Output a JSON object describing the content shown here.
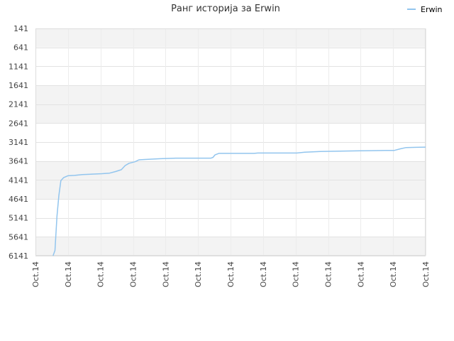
{
  "chart_data": {
    "type": "line",
    "title": "Ранг историја за Erwin",
    "xlabel": "",
    "ylabel": "",
    "y_inverted": true,
    "ylim": [
      141,
      6141
    ],
    "yticks": [
      141,
      641,
      1141,
      1641,
      2141,
      2641,
      3141,
      3641,
      4141,
      4641,
      5141,
      5641,
      6141
    ],
    "xticks": [
      "Oct.14",
      "Oct.14",
      "Oct.14",
      "Oct.14",
      "Oct.14",
      "Oct.14",
      "Oct.14",
      "Oct.14",
      "Oct.14",
      "Oct.14",
      "Oct.14",
      "Oct.14",
      "Oct.14"
    ],
    "grid": true,
    "legend": {
      "position": "top-right",
      "entries": [
        "Erwin"
      ]
    },
    "series": [
      {
        "name": "Erwin",
        "color": "#92c5ee",
        "points": [
          [
            0.045,
            6141
          ],
          [
            0.05,
            6000
          ],
          [
            0.055,
            5100
          ],
          [
            0.06,
            4550
          ],
          [
            0.065,
            4160
          ],
          [
            0.072,
            4080
          ],
          [
            0.083,
            4030
          ],
          [
            0.1,
            4020
          ],
          [
            0.12,
            4000
          ],
          [
            0.15,
            3985
          ],
          [
            0.17,
            3975
          ],
          [
            0.19,
            3960
          ],
          [
            0.205,
            3920
          ],
          [
            0.22,
            3870
          ],
          [
            0.23,
            3760
          ],
          [
            0.24,
            3700
          ],
          [
            0.255,
            3660
          ],
          [
            0.265,
            3610
          ],
          [
            0.28,
            3600
          ],
          [
            0.32,
            3580
          ],
          [
            0.36,
            3565
          ],
          [
            0.45,
            3565
          ],
          [
            0.455,
            3545
          ],
          [
            0.46,
            3480
          ],
          [
            0.47,
            3440
          ],
          [
            0.5,
            3440
          ],
          [
            0.56,
            3440
          ],
          [
            0.57,
            3430
          ],
          [
            0.6,
            3430
          ],
          [
            0.67,
            3430
          ],
          [
            0.69,
            3410
          ],
          [
            0.73,
            3390
          ],
          [
            0.78,
            3380
          ],
          [
            0.84,
            3370
          ],
          [
            0.9,
            3360
          ],
          [
            0.92,
            3360
          ],
          [
            0.935,
            3320
          ],
          [
            0.95,
            3285
          ],
          [
            0.975,
            3280
          ],
          [
            1.0,
            3275
          ]
        ]
      }
    ]
  }
}
